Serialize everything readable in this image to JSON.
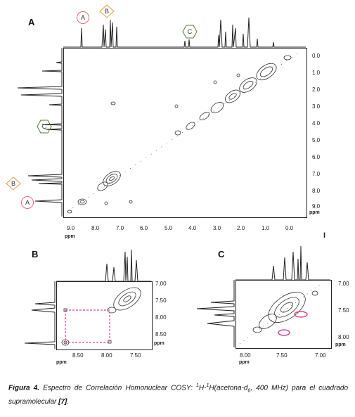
{
  "panels": [
    {
      "letter": "A",
      "x_ticks": [
        "9.0",
        "8.0",
        "7.0",
        "6.0",
        "5.0",
        "4.0",
        "3.0",
        "2.0",
        "1.0",
        "0.0"
      ],
      "y_ticks": [
        "0.0",
        "1.0",
        "2.0",
        "3.0",
        "4.0",
        "5.0",
        "6.0",
        "7.0",
        "8.0",
        "9.0"
      ],
      "x_unit": "ppm",
      "y_unit": "ppm",
      "markers": [
        "A",
        "B",
        "C"
      ]
    },
    {
      "letter": "B",
      "x_ticks": [
        "8.50",
        "8.00",
        "7.50"
      ],
      "y_ticks": [
        "7.00",
        "7.50",
        "8.00",
        "8.50"
      ],
      "x_unit": "ppm",
      "y_unit": "ppm"
    },
    {
      "letter": "C",
      "x_ticks": [
        "8.00",
        "7.50",
        "7.00"
      ],
      "y_ticks": [
        "7.00",
        "7.50",
        "8.00"
      ],
      "x_unit": "ppm",
      "y_unit": "ppm"
    }
  ],
  "stray_mark": "I",
  "caption": {
    "figure_label": "Figura 4.",
    "text_part1": " Espectro de Correlación Homonuclear COSY: ",
    "sup1": "1",
    "text_part2": "H-",
    "sup2": "1",
    "text_part3": "H(acetona-d",
    "sub": "6",
    "text_part4": ", 400 MHz) para el cuadrado supramolecular ",
    "ref": "[7]",
    "end": "."
  },
  "colors": {
    "marker_A": "#e07070",
    "marker_B": "#e0a030",
    "marker_C": "#508030",
    "pink_box": "#e0409a",
    "contour": "#333333"
  }
}
